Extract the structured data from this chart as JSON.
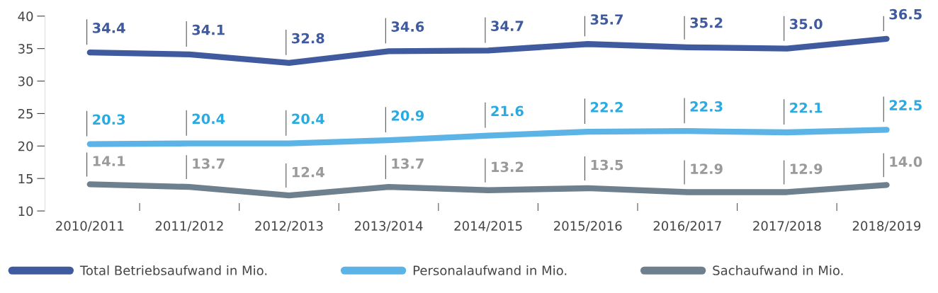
{
  "chart_data": {
    "type": "line",
    "categories": [
      "2010/2011",
      "2011/2012",
      "2012/2013",
      "2013/2014",
      "2014/2015",
      "2015/2016",
      "2016/2017",
      "2017/2018",
      "2018/2019"
    ],
    "series": [
      {
        "name": "Total Betriebsaufwand in Mio.",
        "color": "#3f5a9e",
        "values": [
          34.4,
          34.1,
          32.8,
          34.6,
          34.7,
          35.7,
          35.2,
          35.0,
          36.5
        ],
        "value_labels": [
          "34.4",
          "34.1",
          "32.8",
          "34.6",
          "34.7",
          "35.7",
          "35.2",
          "35.0",
          "36.5"
        ]
      },
      {
        "name": "Personalaufwand in Mio.",
        "color": "#5bb4e5",
        "values": [
          20.3,
          20.4,
          20.4,
          20.9,
          21.6,
          22.2,
          22.3,
          22.1,
          22.5
        ],
        "value_labels": [
          "20.3",
          "20.4",
          "20.4",
          "20.9",
          "21.6",
          "22.2",
          "22.3",
          "22.1",
          "22.5"
        ]
      },
      {
        "name": "Sachaufwand in Mio.",
        "color": "#6e7f8d",
        "values": [
          14.1,
          13.7,
          12.4,
          13.7,
          13.2,
          13.5,
          12.9,
          12.9,
          14.0
        ],
        "value_labels": [
          "14.1",
          "13.7",
          "12.4",
          "13.7",
          "13.2",
          "13.5",
          "12.9",
          "12.9",
          "14.0"
        ]
      }
    ],
    "ylim": [
      10,
      40
    ],
    "yticks": [
      10,
      15,
      20,
      25,
      30,
      35,
      40
    ],
    "grid": false,
    "legend": "bottom",
    "marker": "none",
    "line_style": "solid"
  }
}
